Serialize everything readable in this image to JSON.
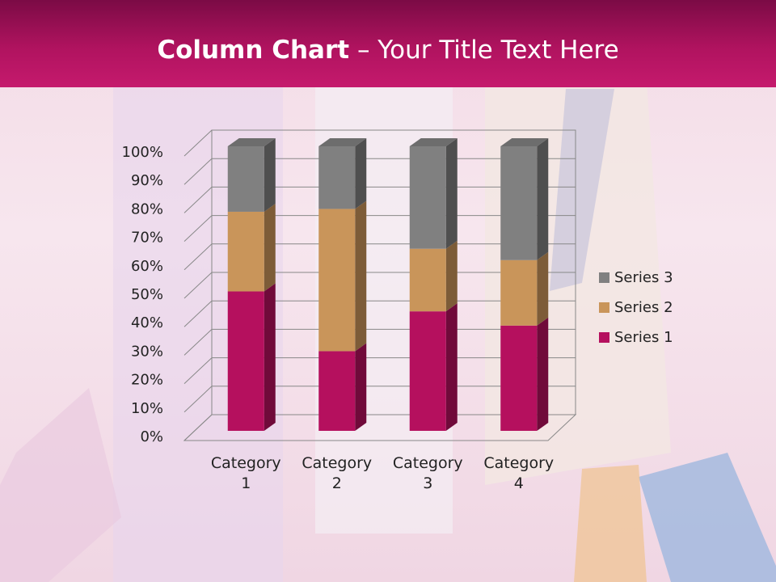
{
  "header": {
    "title_bold": "Column Chart",
    "title_rest": "– Your Title Text Here"
  },
  "chart_data": {
    "type": "stacked_bar_3d",
    "categories": [
      "Category 1",
      "Category 2",
      "Category 3",
      "Category 4"
    ],
    "series": [
      {
        "name": "Series 1",
        "color": "#b5105e",
        "values": [
          49,
          28,
          42,
          37
        ]
      },
      {
        "name": "Series 2",
        "color": "#c9955a",
        "values": [
          28,
          50,
          22,
          23
        ]
      },
      {
        "name": "Series 3",
        "color": "#808080",
        "values": [
          23,
          22,
          36,
          40
        ]
      }
    ],
    "ylim": [
      0,
      100
    ],
    "yticks": [
      {
        "value": 0,
        "label": "0%"
      },
      {
        "value": 10,
        "label": "10%"
      },
      {
        "value": 20,
        "label": "20%"
      },
      {
        "value": 30,
        "label": "30%"
      },
      {
        "value": 40,
        "label": "40%"
      },
      {
        "value": 50,
        "label": "50%"
      },
      {
        "value": 60,
        "label": "60%"
      },
      {
        "value": 70,
        "label": "70%"
      },
      {
        "value": 80,
        "label": "80%"
      },
      {
        "value": 90,
        "label": "90%"
      },
      {
        "value": 100,
        "label": "100%"
      }
    ],
    "grid": true,
    "legend": "right"
  }
}
